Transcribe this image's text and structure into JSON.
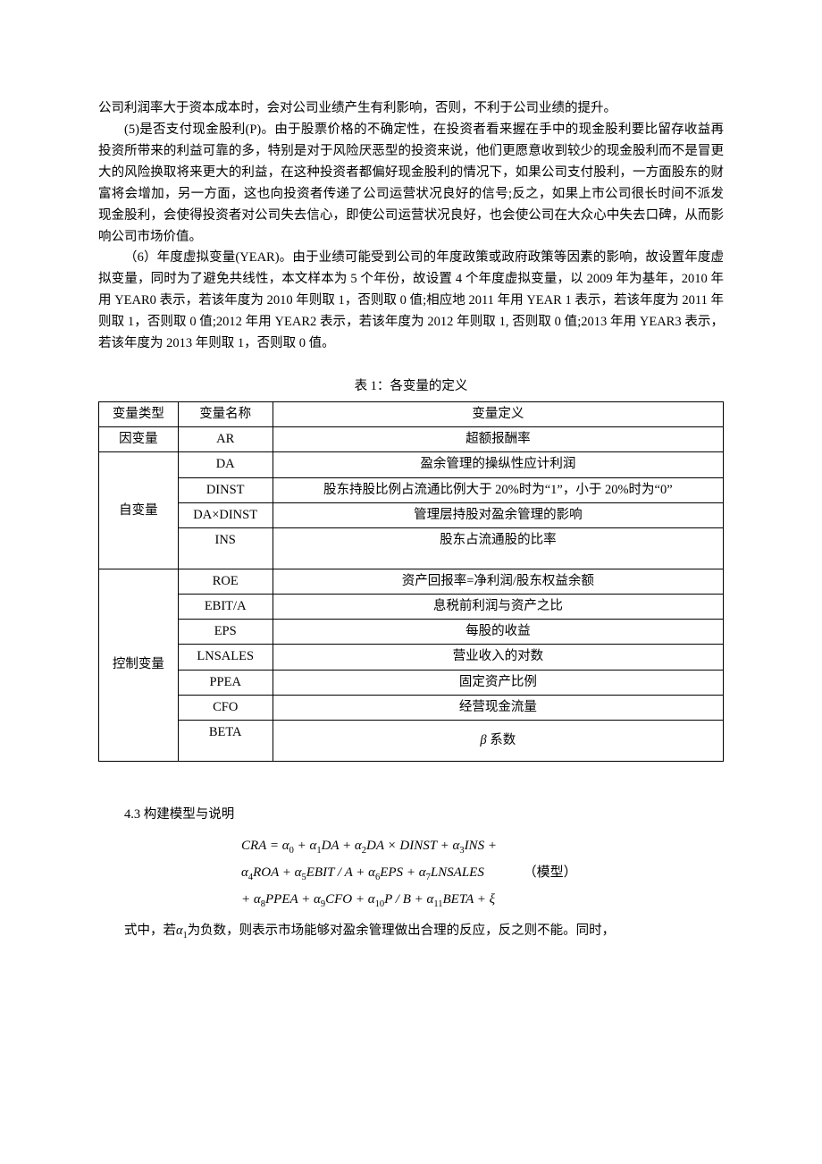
{
  "paragraphs": {
    "p0": "公司利润率大于资本成本时，会对公司业绩产生有利影响，否则，不利于公司业绩的提升。",
    "p1": "(5)是否支付现金股利(P)。由于股票价格的不确定性，在投资者看来握在手中的现金股利要比留存收益再投资所带来的利益可靠的多，特别是对于风险厌恶型的投资来说，他们更愿意收到较少的现金股利而不是冒更大的风险换取将来更大的利益，在这种投资者都偏好现金股利的情况下，如果公司支付股利，一方面股东的财富将会增加，另一方面，这也向投资者传递了公司运营状况良好的信号;反之，如果上市公司很长时间不派发现金股利，会使得投资者对公司失去信心，即使公司运营状况良好，也会使公司在大众心中失去口碑，从而影响公司市场价值。",
    "p2": "（6）年度虚拟变量(YEAR)。由于业绩可能受到公司的年度政策或政府政策等因素的影响，故设置年度虚拟变量，同时为了避免共线性，本文样本为 5 个年份，故设置 4 个年度虚拟变量，以 2009 年为基年，2010 年用 YEAR0 表示，若该年度为 2010 年则取 1，否则取 0 值;相应地 2011 年用 YEAR 1 表示，若该年度为 2011 年则取 1，否则取 0 值;2012 年用 YEAR2 表示，若该年度为 2012 年则取 1, 否则取 0 值;2013 年用 YEAR3 表示，若该年度为 2013 年则取 1，否则取 0 值。"
  },
  "table": {
    "caption": "表 1：各变量的定义",
    "header": {
      "c0": "变量类型",
      "c1": "变量名称",
      "c2": "变量定义"
    },
    "r0": {
      "c0": "因变量",
      "c1": "AR",
      "c2": "超额报酬率"
    },
    "r1": {
      "c0": "自变量",
      "c1": "DA",
      "c2": "盈余管理的操纵性应计利润"
    },
    "r2": {
      "c1": "DINST",
      "c2": "股东持股比例占流通比例大于 20%时为“1”，小于 20%时为“0”"
    },
    "r3": {
      "c1": "DA×DINST",
      "c2": "管理层持股对盈余管理的影响"
    },
    "r4": {
      "c1": "INS",
      "c2": "股东占流通股的比率"
    },
    "r5": {
      "c0": "控制变量",
      "c1": "ROE",
      "c2": "资产回报率=净利润/股东权益余额"
    },
    "r6": {
      "c1": "EBIT/A",
      "c2": "息税前利润与资产之比"
    },
    "r7": {
      "c1": "EPS",
      "c2": "每股的收益"
    },
    "r8": {
      "c1": "LNSALES",
      "c2": "营业收入的对数"
    },
    "r9": {
      "c1": "PPEA",
      "c2": "固定资产比例"
    },
    "r10": {
      "c1": "CFO",
      "c2": "经营现金流量"
    },
    "r11": {
      "c1": "BETA"
    },
    "beta_label_prefix": "β",
    "beta_label_suffix": " 系数"
  },
  "section": {
    "title": "4.3 构建模型与说明",
    "formula_line1": "CRA = α₀ + α₁DA + α₂DA × DINST + α₃INS +",
    "formula_line2": "α₄ROA + α₅EBIT / A + α₆EPS + α₇LNSALES",
    "formula_line3": "+ α₈PPEA + α₉CFO + α₁₀P / B + α₁₁BETA + ξ",
    "formula_label": "（模型）",
    "final_prefix": "式中，若",
    "final_alpha": "α",
    "final_sub": "1",
    "final_suffix": "为负数，则表示市场能够对盈余管理做出合理的反应，反之则不能。同时，"
  }
}
